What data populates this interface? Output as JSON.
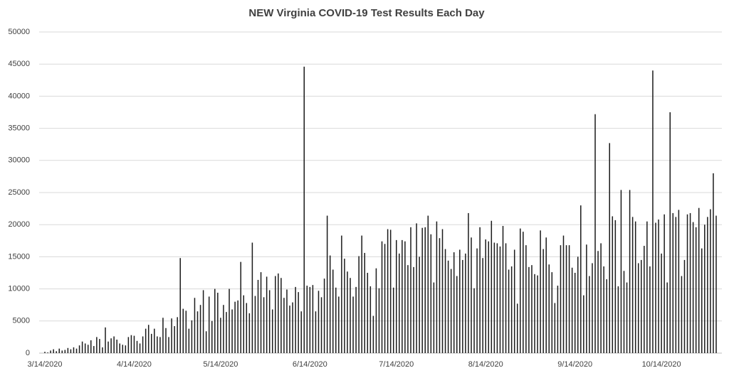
{
  "chart_data": {
    "type": "bar",
    "title": "NEW Virginia COVID-19 Test Results Each Day",
    "categories": [
      "3/14/2020",
      null,
      null,
      null,
      null,
      null,
      null,
      null,
      null,
      null,
      null,
      null,
      null,
      null,
      null,
      null,
      null,
      null,
      null,
      null,
      null,
      null,
      null,
      null,
      null,
      null,
      null,
      null,
      null,
      null,
      null,
      "4/14/2020",
      null,
      null,
      null,
      null,
      null,
      null,
      null,
      null,
      null,
      null,
      null,
      null,
      null,
      null,
      null,
      null,
      null,
      null,
      null,
      null,
      null,
      null,
      null,
      null,
      null,
      null,
      null,
      null,
      null,
      "5/14/2020",
      null,
      null,
      null,
      null,
      null,
      null,
      null,
      null,
      null,
      null,
      null,
      null,
      null,
      null,
      null,
      null,
      null,
      null,
      null,
      null,
      null,
      null,
      null,
      null,
      null,
      null,
      null,
      null,
      null,
      null,
      "6/14/2020",
      null,
      null,
      null,
      null,
      null,
      null,
      null,
      null,
      null,
      null,
      null,
      null,
      null,
      null,
      null,
      null,
      null,
      null,
      null,
      null,
      null,
      null,
      null,
      null,
      null,
      null,
      null,
      null,
      null,
      "7/14/2020",
      null,
      null,
      null,
      null,
      null,
      null,
      null,
      null,
      null,
      null,
      null,
      null,
      null,
      null,
      null,
      null,
      null,
      null,
      null,
      null,
      null,
      null,
      null,
      null,
      null,
      null,
      null,
      null,
      null,
      null,
      "8/14/2020",
      null,
      null,
      null,
      null,
      null,
      null,
      null,
      null,
      null,
      null,
      null,
      null,
      null,
      null,
      null,
      null,
      null,
      null,
      null,
      null,
      null,
      null,
      null,
      null,
      null,
      null,
      null,
      null,
      null,
      null,
      "9/14/2020",
      null,
      null,
      null,
      null,
      null,
      null,
      null,
      null,
      null,
      null,
      null,
      null,
      null,
      null,
      null,
      null,
      null,
      null,
      null,
      null,
      null,
      null,
      null,
      null,
      null,
      null,
      null,
      null,
      null,
      "10/14/2020",
      null,
      null,
      null,
      null,
      null,
      null,
      null,
      null,
      null,
      null,
      null,
      null,
      null,
      null,
      null,
      null,
      null,
      null,
      null
    ],
    "values": [
      200,
      100,
      400,
      600,
      300,
      700,
      400,
      500,
      800,
      600,
      900,
      700,
      1200,
      1800,
      1500,
      1300,
      2000,
      1100,
      2500,
      2200,
      900,
      4000,
      1800,
      2300,
      2600,
      2100,
      1500,
      1300,
      1200,
      2500,
      2800,
      2700,
      1900,
      1500,
      2600,
      3800,
      4400,
      3000,
      3800,
      2600,
      2500,
      5500,
      3900,
      2500,
      5400,
      4200,
      5600,
      14800,
      6900,
      6600,
      3800,
      5100,
      8600,
      6500,
      7500,
      9800,
      3400,
      8800,
      5000,
      10000,
      9400,
      5500,
      7500,
      6400,
      10000,
      6800,
      8000,
      8200,
      14200,
      9000,
      7800,
      6200,
      17200,
      8900,
      11400,
      12600,
      8700,
      11900,
      9800,
      6800,
      12000,
      12400,
      11700,
      8600,
      9900,
      7400,
      7900,
      10300,
      9500,
      6500,
      44600,
      10500,
      10300,
      10600,
      6500,
      9700,
      8700,
      11600,
      21400,
      15200,
      13000,
      10200,
      8800,
      18300,
      14700,
      12700,
      11700,
      8800,
      10300,
      15100,
      18300,
      15600,
      12500,
      10400,
      5800,
      13200,
      10100,
      17400,
      17000,
      19300,
      19200,
      10200,
      17600,
      15500,
      17600,
      17400,
      13700,
      19600,
      13400,
      20200,
      15000,
      19500,
      19600,
      21400,
      18500,
      11000,
      20500,
      17900,
      19300,
      16200,
      14400,
      13100,
      15700,
      12000,
      16100,
      14500,
      15500,
      21800,
      18000,
      10100,
      16300,
      19600,
      14800,
      17700,
      17400,
      20600,
      17200,
      17100,
      16600,
      19800,
      17100,
      13000,
      13500,
      16100,
      7700,
      19400,
      18900,
      16800,
      13400,
      13700,
      12300,
      12100,
      19100,
      16200,
      18000,
      13800,
      12600,
      7800,
      10500,
      16800,
      18300,
      16800,
      16800,
      13300,
      12500,
      15000,
      23000,
      9000,
      16900,
      12000,
      14000,
      37200,
      15900,
      17100,
      13500,
      11500,
      32700,
      21300,
      20700,
      10400,
      25400,
      12800,
      11000,
      25400,
      21200,
      20500,
      14000,
      14500,
      16700,
      20500,
      13500,
      44000,
      20300,
      20800,
      15500,
      21600,
      11000,
      37500,
      21800,
      21200,
      22300,
      12000,
      14500,
      21600,
      21800,
      20400,
      19600,
      22600,
      16300,
      20000,
      21200,
      22400,
      28000,
      21400
    ],
    "color": "#1a1a1a",
    "ylim": [
      0,
      50000
    ],
    "yticks": [
      0,
      5000,
      10000,
      15000,
      20000,
      25000,
      30000,
      35000,
      40000,
      45000,
      50000
    ],
    "grid": true
  }
}
